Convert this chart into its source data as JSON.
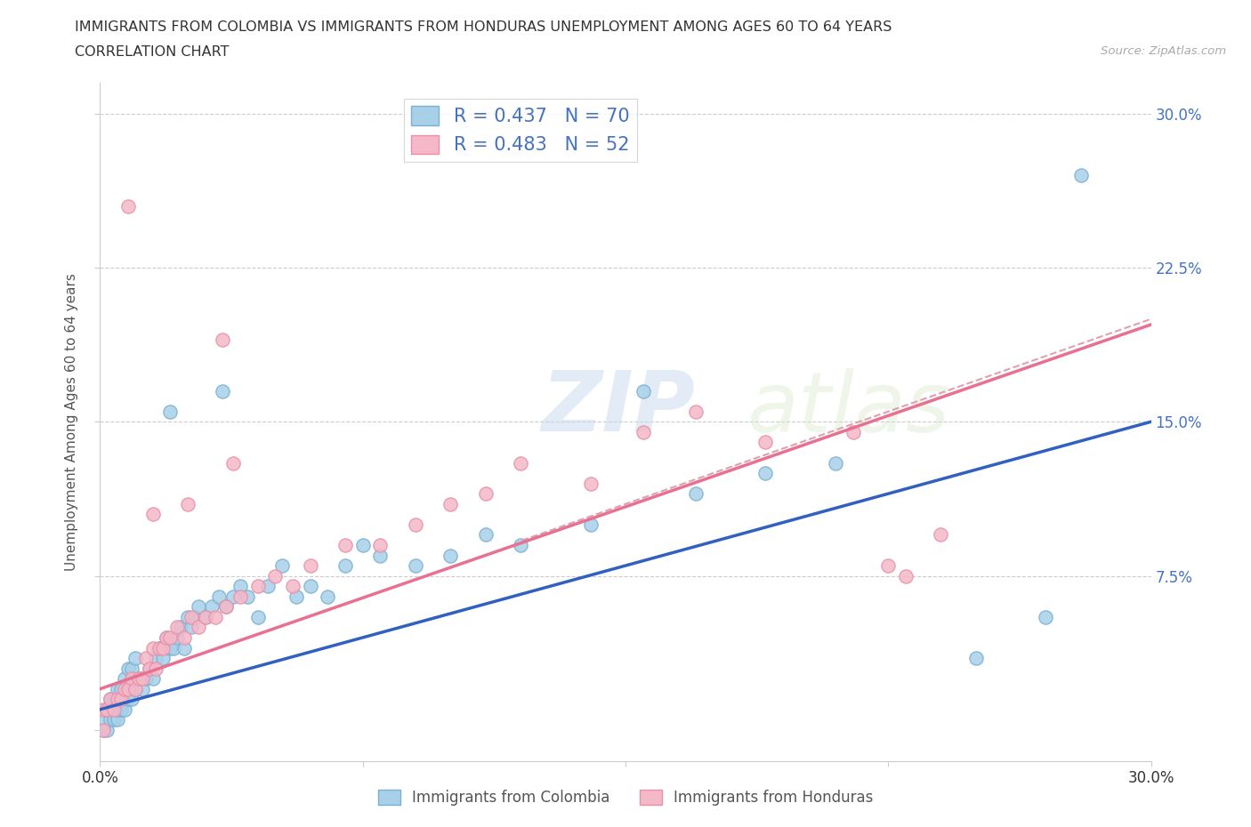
{
  "title_line1": "IMMIGRANTS FROM COLOMBIA VS IMMIGRANTS FROM HONDURAS UNEMPLOYMENT AMONG AGES 60 TO 64 YEARS",
  "title_line2": "CORRELATION CHART",
  "source": "Source: ZipAtlas.com",
  "ylabel": "Unemployment Among Ages 60 to 64 years",
  "xlim": [
    0.0,
    0.3
  ],
  "ylim": [
    -0.015,
    0.315
  ],
  "xticks": [
    0.0,
    0.075,
    0.15,
    0.225,
    0.3
  ],
  "yticks": [
    0.0,
    0.075,
    0.15,
    0.225,
    0.3
  ],
  "xticklabels": [
    "0.0%",
    "",
    "",
    "",
    "30.0%"
  ],
  "yticklabels": [
    "",
    "7.5%",
    "15.0%",
    "22.5%",
    "30.0%"
  ],
  "colombia_color": "#a8d0e8",
  "honduras_color": "#f4b8c8",
  "colombia_edge": "#7ab0d4",
  "honduras_edge": "#e890a8",
  "trendline_colombia_color": "#3060c0",
  "trendline_honduras_color": "#e87090",
  "trendline_dashed_color": "#e8a0b0",
  "R_colombia": 0.437,
  "N_colombia": 70,
  "R_honduras": 0.483,
  "N_honduras": 52,
  "background_color": "#ffffff",
  "grid_color": "#cccccc",
  "title_fontsize": 11.5,
  "axis_label_fontsize": 11,
  "tick_fontsize": 12,
  "legend_fontsize": 15,
  "colombia_x": [
    0.001,
    0.001,
    0.002,
    0.002,
    0.003,
    0.003,
    0.003,
    0.004,
    0.004,
    0.005,
    0.005,
    0.005,
    0.006,
    0.006,
    0.007,
    0.007,
    0.008,
    0.008,
    0.009,
    0.009,
    0.01,
    0.01,
    0.011,
    0.012,
    0.013,
    0.014,
    0.015,
    0.016,
    0.017,
    0.018,
    0.019,
    0.02,
    0.021,
    0.022,
    0.023,
    0.024,
    0.025,
    0.026,
    0.027,
    0.028,
    0.03,
    0.032,
    0.034,
    0.036,
    0.038,
    0.04,
    0.042,
    0.045,
    0.048,
    0.052,
    0.056,
    0.06,
    0.065,
    0.07,
    0.075,
    0.08,
    0.09,
    0.1,
    0.11,
    0.12,
    0.14,
    0.155,
    0.17,
    0.19,
    0.21,
    0.25,
    0.27,
    0.02,
    0.035,
    0.28
  ],
  "colombia_y": [
    0.0,
    0.005,
    0.0,
    0.01,
    0.005,
    0.01,
    0.015,
    0.005,
    0.015,
    0.005,
    0.01,
    0.02,
    0.01,
    0.02,
    0.01,
    0.025,
    0.015,
    0.03,
    0.015,
    0.03,
    0.02,
    0.035,
    0.025,
    0.02,
    0.025,
    0.03,
    0.025,
    0.035,
    0.04,
    0.035,
    0.045,
    0.04,
    0.04,
    0.045,
    0.05,
    0.04,
    0.055,
    0.05,
    0.055,
    0.06,
    0.055,
    0.06,
    0.065,
    0.06,
    0.065,
    0.07,
    0.065,
    0.055,
    0.07,
    0.08,
    0.065,
    0.07,
    0.065,
    0.08,
    0.09,
    0.085,
    0.08,
    0.085,
    0.095,
    0.09,
    0.1,
    0.165,
    0.115,
    0.125,
    0.13,
    0.035,
    0.055,
    0.155,
    0.165,
    0.27
  ],
  "honduras_x": [
    0.001,
    0.001,
    0.002,
    0.003,
    0.004,
    0.005,
    0.006,
    0.007,
    0.008,
    0.009,
    0.01,
    0.011,
    0.012,
    0.013,
    0.014,
    0.015,
    0.016,
    0.017,
    0.018,
    0.019,
    0.02,
    0.022,
    0.024,
    0.026,
    0.028,
    0.03,
    0.033,
    0.036,
    0.04,
    0.045,
    0.05,
    0.055,
    0.06,
    0.07,
    0.08,
    0.09,
    0.1,
    0.11,
    0.12,
    0.14,
    0.155,
    0.17,
    0.19,
    0.215,
    0.225,
    0.23,
    0.24,
    0.015,
    0.025,
    0.038,
    0.035,
    0.008
  ],
  "honduras_y": [
    0.0,
    0.01,
    0.01,
    0.015,
    0.01,
    0.015,
    0.015,
    0.02,
    0.02,
    0.025,
    0.02,
    0.025,
    0.025,
    0.035,
    0.03,
    0.04,
    0.03,
    0.04,
    0.04,
    0.045,
    0.045,
    0.05,
    0.045,
    0.055,
    0.05,
    0.055,
    0.055,
    0.06,
    0.065,
    0.07,
    0.075,
    0.07,
    0.08,
    0.09,
    0.09,
    0.1,
    0.11,
    0.115,
    0.13,
    0.12,
    0.145,
    0.155,
    0.14,
    0.145,
    0.08,
    0.075,
    0.095,
    0.105,
    0.11,
    0.13,
    0.19,
    0.255
  ]
}
